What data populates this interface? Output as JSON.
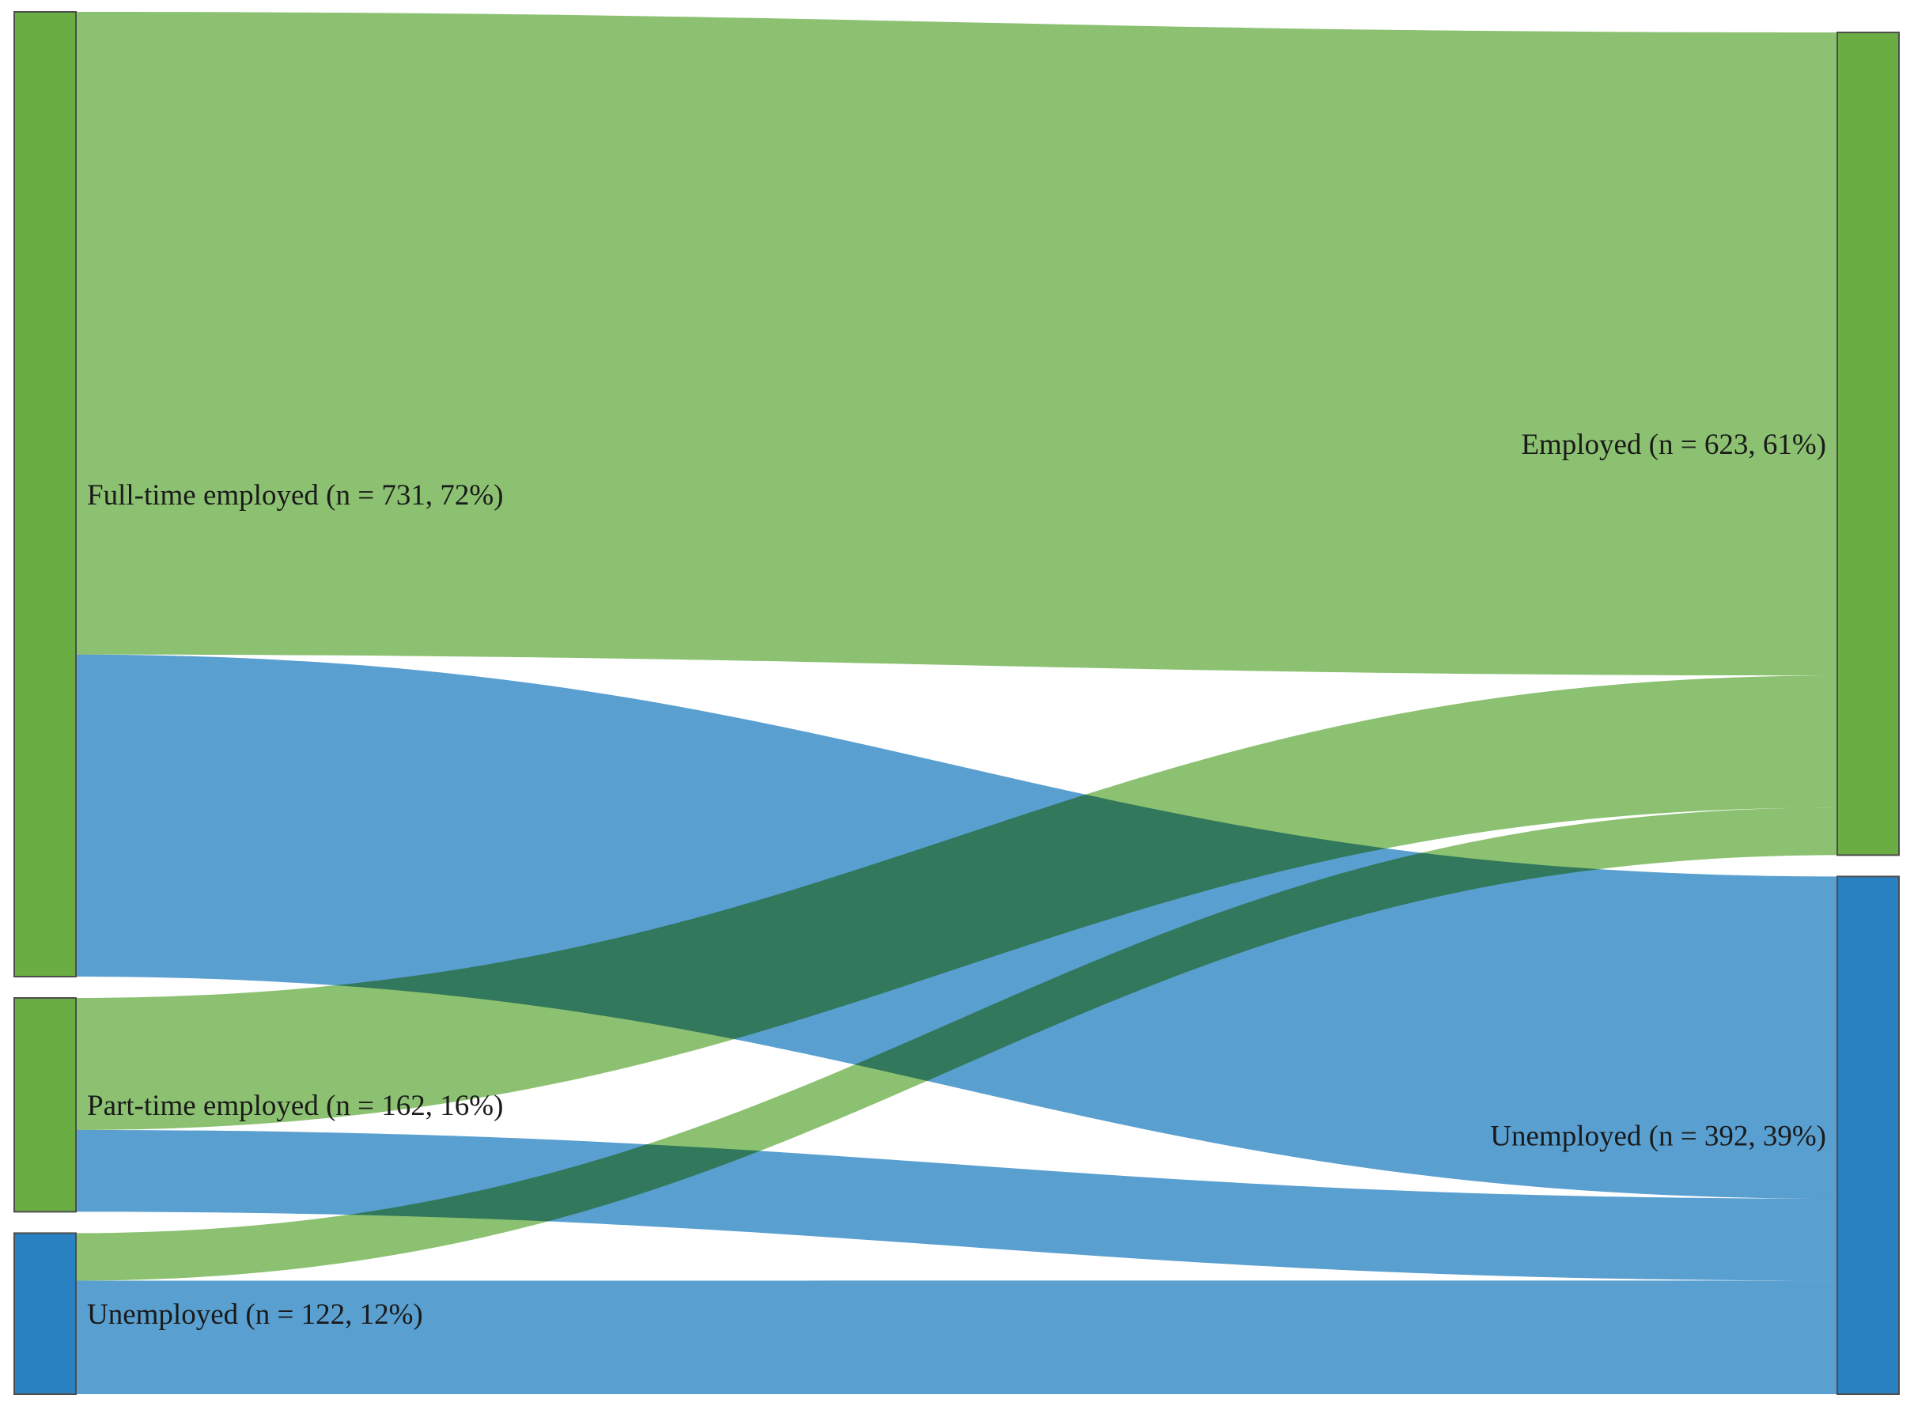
{
  "chart_data": {
    "type": "sankey",
    "colors": {
      "employed_node": "#69ad43",
      "unemployed_node": "#2981c2",
      "employed_flow": "#8bc171",
      "unemployed_flow": "#599fd0",
      "node_border": "#4d4d4d"
    },
    "left_nodes": [
      {
        "id": "ft",
        "label": "Full-time employed (n = 731, 72%)",
        "n": 731,
        "color_key": "employed_node"
      },
      {
        "id": "pt",
        "label": "Part-time employed (n = 162, 16%)",
        "n": 162,
        "color_key": "employed_node"
      },
      {
        "id": "ue",
        "label": "Unemployed (n = 122, 12%)",
        "n": 122,
        "color_key": "unemployed_node"
      }
    ],
    "right_nodes": [
      {
        "id": "emp",
        "label": "Employed (n = 623, 61%)",
        "n": 623,
        "color_key": "employed_node"
      },
      {
        "id": "une",
        "label": "Unemployed (n = 392, 39%)",
        "n": 392,
        "color_key": "unemployed_node"
      }
    ],
    "flows": [
      {
        "source": "ft",
        "target": "emp",
        "value": 487,
        "color_key": "employed_flow"
      },
      {
        "source": "ft",
        "target": "une",
        "value": 244,
        "color_key": "unemployed_flow"
      },
      {
        "source": "pt",
        "target": "emp",
        "value": 100,
        "color_key": "employed_flow"
      },
      {
        "source": "pt",
        "target": "une",
        "value": 62,
        "color_key": "unemployed_flow"
      },
      {
        "source": "ue",
        "target": "emp",
        "value": 36,
        "color_key": "employed_flow"
      },
      {
        "source": "ue",
        "target": "une",
        "value": 86,
        "color_key": "unemployed_flow"
      }
    ]
  }
}
